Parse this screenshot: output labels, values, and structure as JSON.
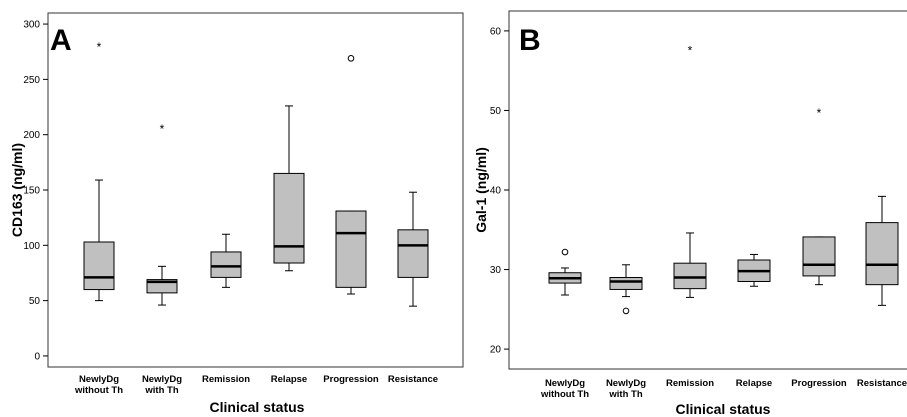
{
  "chart_data": [
    {
      "type": "box",
      "panel_label": "A",
      "xlabel": "Clinical status",
      "ylabel": "CD163 (ng/ml)",
      "ylim": [
        -10,
        310
      ],
      "yticks": [
        0,
        50,
        100,
        150,
        200,
        250,
        300
      ],
      "grid": false,
      "categories": [
        [
          "NewlyDg",
          "without Th"
        ],
        [
          "NewlyDg",
          "with Th"
        ],
        [
          "Remission"
        ],
        [
          "Relapse"
        ],
        [
          "Progression"
        ],
        [
          "Resistance"
        ]
      ],
      "boxes": [
        {
          "whisker_low": 50,
          "q1": 60,
          "median": 71,
          "q3": 103,
          "whisker_high": 159,
          "outliers": [],
          "extremes": [
            281
          ]
        },
        {
          "whisker_low": 46,
          "q1": 57,
          "median": 67,
          "q3": 69,
          "whisker_high": 81,
          "outliers": [],
          "extremes": [
            207
          ]
        },
        {
          "whisker_low": 62,
          "q1": 71,
          "median": 81,
          "q3": 94,
          "whisker_high": 110,
          "outliers": [],
          "extremes": []
        },
        {
          "whisker_low": 77,
          "q1": 84,
          "median": 99,
          "q3": 165,
          "whisker_high": 226,
          "outliers": [],
          "extremes": []
        },
        {
          "whisker_low": 56,
          "q1": 62,
          "median": 111,
          "q3": 131,
          "whisker_high": 131,
          "outliers": [
            269
          ],
          "extremes": []
        },
        {
          "whisker_low": 45,
          "q1": 71,
          "median": 100,
          "q3": 114,
          "whisker_high": 148,
          "outliers": [],
          "extremes": []
        }
      ]
    },
    {
      "type": "box",
      "panel_label": "B",
      "xlabel": "Clinical status",
      "ylabel": "Gal-1 (ng/ml)",
      "ylim": [
        17.5,
        62.5
      ],
      "yticks": [
        20,
        30,
        40,
        50,
        60
      ],
      "grid": false,
      "categories": [
        [
          "NewlyDg",
          "without Th"
        ],
        [
          "NewlyDg",
          "with Th"
        ],
        [
          "Remission"
        ],
        [
          "Relapse"
        ],
        [
          "Progression"
        ],
        [
          "Resistance"
        ]
      ],
      "boxes": [
        {
          "whisker_low": 26.8,
          "q1": 28.3,
          "median": 28.9,
          "q3": 29.6,
          "whisker_high": 30.2,
          "outliers": [
            32.2
          ],
          "extremes": []
        },
        {
          "whisker_low": 26.6,
          "q1": 27.5,
          "median": 28.5,
          "q3": 29.0,
          "whisker_high": 30.6,
          "outliers": [
            24.8
          ],
          "extremes": []
        },
        {
          "whisker_low": 26.5,
          "q1": 27.6,
          "median": 29.0,
          "q3": 30.8,
          "whisker_high": 34.6,
          "outliers": [],
          "extremes": [
            57.8
          ]
        },
        {
          "whisker_low": 27.9,
          "q1": 28.5,
          "median": 29.8,
          "q3": 31.2,
          "whisker_high": 31.9,
          "outliers": [],
          "extremes": []
        },
        {
          "whisker_low": 28.1,
          "q1": 29.2,
          "median": 30.6,
          "q3": 34.1,
          "whisker_high": 34.1,
          "outliers": [],
          "extremes": [
            49.9
          ]
        },
        {
          "whisker_low": 25.5,
          "q1": 28.1,
          "median": 30.6,
          "q3": 35.9,
          "whisker_high": 39.2,
          "outliers": [],
          "extremes": []
        }
      ]
    }
  ],
  "colors": {
    "box_fill": "#c0c0c0",
    "stroke": "#000000",
    "plot_border": "#333333"
  }
}
